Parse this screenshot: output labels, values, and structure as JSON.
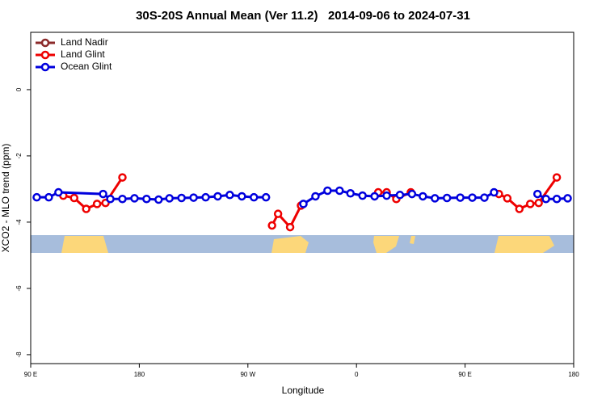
{
  "chart_data": {
    "type": "line",
    "title": "30S-20S Annual Mean (Ver 11.2)   2014-09-06 to 2024-07-31",
    "xlabel": "Longitude",
    "ylabel": "XCO2 - MLO trend (ppm)",
    "xlim": [
      90,
      540
    ],
    "ylim": [
      -8.27,
      1.73
    ],
    "xticks": [
      {
        "value": 90,
        "label": "90 E"
      },
      {
        "value": 180,
        "label": "180"
      },
      {
        "value": 270,
        "label": "90 W"
      },
      {
        "value": 360,
        "label": "0"
      },
      {
        "value": 450,
        "label": "90 E"
      },
      {
        "value": 540,
        "label": "180"
      }
    ],
    "yticks": [
      0,
      -2,
      -4,
      -6,
      -8
    ],
    "legend": "upper left",
    "series": [
      {
        "name": "Land Nadir",
        "color": "#8b2a2a",
        "x": [],
        "values": []
      },
      {
        "name": "Land Glint",
        "color": "#ee0000",
        "x": [
          117,
          126,
          136,
          145,
          152,
          166,
          null,
          290,
          295,
          305,
          314,
          null,
          378,
          385,
          393,
          405,
          null,
          478,
          485,
          495,
          504,
          511,
          526
        ],
        "values": [
          -3.2,
          -3.27,
          -3.6,
          -3.45,
          -3.42,
          -2.65,
          null,
          -4.1,
          -3.75,
          -4.15,
          -3.5,
          null,
          -3.1,
          -3.1,
          -3.3,
          -3.1,
          null,
          -3.15,
          -3.28,
          -3.6,
          -3.45,
          -3.42,
          -2.65
        ]
      },
      {
        "name": "Ocean Glint",
        "color": "#0000dd",
        "x": [
          95,
          105,
          113,
          150,
          156,
          166,
          176,
          186,
          196,
          205,
          215,
          225,
          235,
          245,
          255,
          265,
          275,
          285,
          null,
          316,
          326,
          336,
          346,
          355,
          365,
          375,
          385,
          396,
          406,
          415,
          425,
          435,
          446,
          456,
          466,
          474,
          null,
          510,
          517,
          526,
          535
        ],
        "values": [
          -3.25,
          -3.25,
          -3.1,
          -3.15,
          -3.3,
          -3.3,
          -3.28,
          -3.3,
          -3.32,
          -3.28,
          -3.27,
          -3.26,
          -3.25,
          -3.22,
          -3.18,
          -3.22,
          -3.25,
          -3.25,
          null,
          -3.45,
          -3.22,
          -3.05,
          -3.05,
          -3.13,
          -3.2,
          -3.22,
          -3.2,
          -3.18,
          -3.15,
          -3.22,
          -3.28,
          -3.27,
          -3.26,
          -3.26,
          -3.26,
          -3.1,
          null,
          -3.15,
          -3.3,
          -3.3,
          -3.28
        ]
      }
    ]
  }
}
